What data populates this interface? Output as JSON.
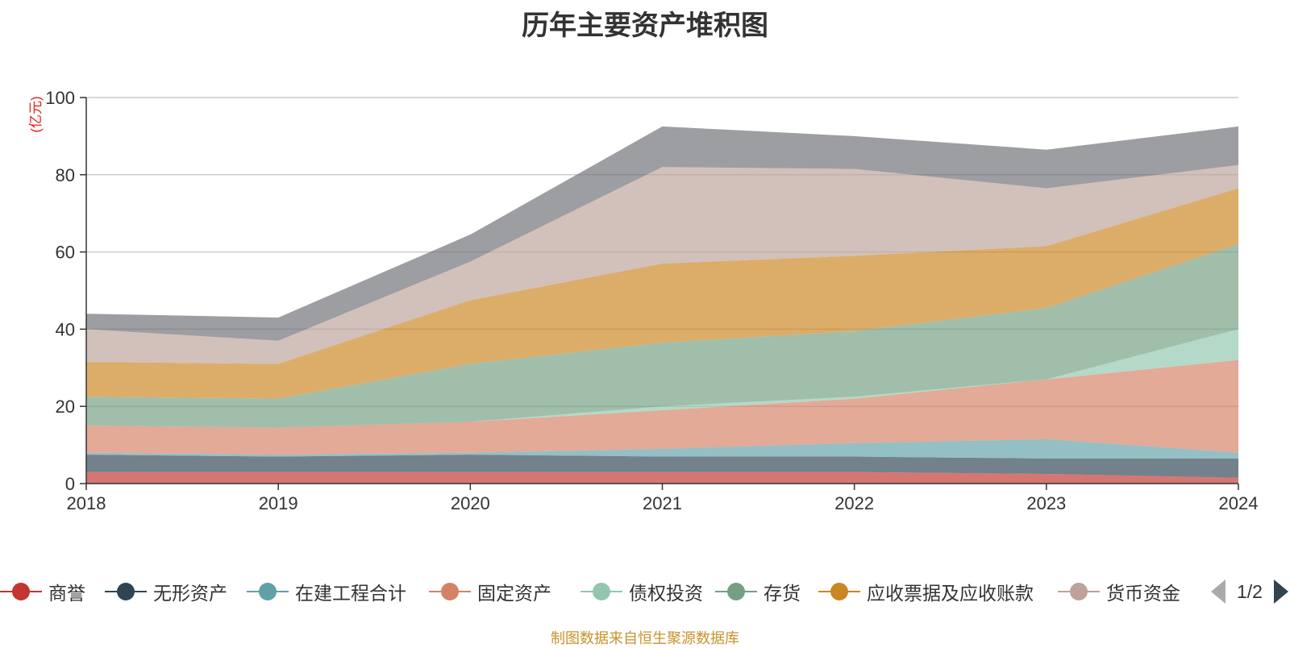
{
  "chart_data": {
    "type": "area",
    "title": "历年主要资产堆积图",
    "unit_label": "(亿元)",
    "xlabel": "",
    "ylabel": "",
    "x": [
      "2018",
      "2019",
      "2020",
      "2021",
      "2022",
      "2023",
      "2024"
    ],
    "ylim": [
      0,
      100
    ],
    "yticks": [
      "0",
      "20",
      "40",
      "60",
      "80",
      "100"
    ],
    "grid": true,
    "stacked": true,
    "series": [
      {
        "name": "商誉",
        "color": "#c23531",
        "values": [
          3.0,
          3.0,
          3.0,
          3.0,
          3.0,
          2.5,
          1.5
        ]
      },
      {
        "name": "无形资产",
        "color": "#2f4554",
        "values": [
          4.5,
          4.0,
          4.5,
          4.0,
          4.0,
          4.0,
          5.0
        ]
      },
      {
        "name": "在建工程合计",
        "color": "#61a0a8",
        "values": [
          0.5,
          0.5,
          0.5,
          2.0,
          3.5,
          5.0,
          1.5
        ]
      },
      {
        "name": "固定资产",
        "color": "#d48265",
        "values": [
          7.0,
          7.0,
          8.0,
          10.0,
          11.5,
          15.5,
          24.0
        ]
      },
      {
        "name": "债权投资",
        "color": "#91c7ae",
        "values": [
          0.0,
          0.0,
          0.0,
          1.0,
          0.5,
          0.0,
          8.0
        ]
      },
      {
        "name": "存货",
        "color": "#749f83",
        "values": [
          7.5,
          7.5,
          15.0,
          16.5,
          17.0,
          18.5,
          22.0
        ]
      },
      {
        "name": "应收票据及应收账款",
        "color": "#ca8622",
        "values": [
          9.0,
          9.0,
          16.5,
          20.5,
          19.5,
          16.0,
          14.5
        ]
      },
      {
        "name": "货币资金",
        "color": "#bda29a",
        "values": [
          8.5,
          6.0,
          10.0,
          25.0,
          22.5,
          15.0,
          6.0
        ]
      },
      {
        "name": "",
        "color": "#6e7074",
        "values": [
          4.0,
          6.0,
          7.0,
          10.5,
          8.5,
          10.0,
          10.0
        ]
      }
    ]
  },
  "legend": {
    "items": [
      {
        "label": "商誉",
        "color": "#c23531"
      },
      {
        "label": "无形资产",
        "color": "#2f4554"
      },
      {
        "label": "在建工程合计",
        "color": "#61a0a8"
      },
      {
        "label": "固定资产",
        "color": "#d48265"
      },
      {
        "label": "债权投资",
        "color": "#91c7ae"
      },
      {
        "label": "存货",
        "color": "#749f83"
      },
      {
        "label": "应收票据及应收账款",
        "color": "#ca8622"
      },
      {
        "label": "货币资金",
        "color": "#bda29a"
      }
    ],
    "page_indicator": "1/2"
  },
  "footer": {
    "source_note": "制图数据来自恒生聚源数据库"
  }
}
